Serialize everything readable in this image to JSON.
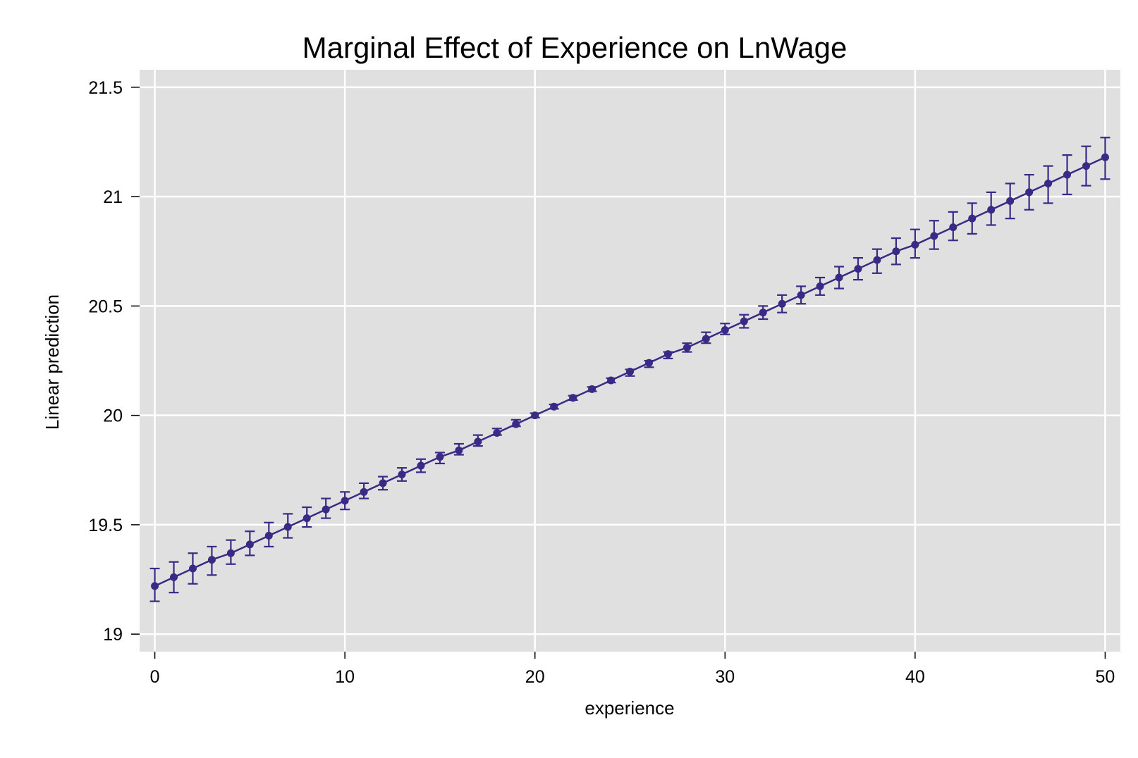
{
  "chart_data": {
    "type": "line",
    "title": "Marginal Effect of Experience on LnWage",
    "xlabel": "experience",
    "ylabel": "Linear prediction",
    "xlim": [
      -0.8,
      50.8
    ],
    "ylim": [
      18.92,
      21.58
    ],
    "x_ticks": [
      0,
      10,
      20,
      30,
      40,
      50
    ],
    "x_tick_labels": [
      "0",
      "10",
      "20",
      "30",
      "40",
      "50"
    ],
    "y_ticks": [
      19,
      19.5,
      20,
      20.5,
      21,
      21.5
    ],
    "y_tick_labels": [
      "19",
      "19.5",
      "20",
      "20.5",
      "21",
      "21.5"
    ],
    "grid": true,
    "legend": "none",
    "colors": {
      "series": "#3a2a86",
      "plot_background": "#e0e0e0",
      "grid": "#ffffff"
    },
    "series": [
      {
        "x": [
          0,
          1,
          2,
          3,
          4,
          5,
          6,
          7,
          8,
          9,
          10,
          11,
          12,
          13,
          14,
          15,
          16,
          17,
          18,
          19,
          20,
          21,
          22,
          23,
          24,
          25,
          26,
          27,
          28,
          29,
          30,
          31,
          32,
          33,
          34,
          35,
          36,
          37,
          38,
          39,
          40,
          41,
          42,
          43,
          44,
          45,
          46,
          47,
          48,
          49,
          50
        ],
        "y": [
          19.22,
          19.26,
          19.3,
          19.34,
          19.37,
          19.41,
          19.45,
          19.49,
          19.53,
          19.57,
          19.61,
          19.65,
          19.69,
          19.73,
          19.77,
          19.81,
          19.84,
          19.88,
          19.92,
          19.96,
          20.0,
          20.04,
          20.08,
          20.12,
          20.16,
          20.2,
          20.24,
          20.28,
          20.31,
          20.35,
          20.39,
          20.43,
          20.47,
          20.51,
          20.55,
          20.59,
          20.63,
          20.67,
          20.71,
          20.75,
          20.78,
          20.82,
          20.86,
          20.9,
          20.94,
          20.98,
          21.02,
          21.06,
          21.1,
          21.14,
          21.18
        ],
        "ci_lower": [
          19.15,
          19.19,
          19.23,
          19.27,
          19.32,
          19.36,
          19.4,
          19.44,
          19.49,
          19.53,
          19.57,
          19.62,
          19.66,
          19.7,
          19.74,
          19.78,
          19.82,
          19.86,
          19.91,
          19.95,
          19.99,
          20.03,
          20.07,
          20.11,
          20.15,
          20.18,
          20.22,
          20.26,
          20.29,
          20.33,
          20.37,
          20.4,
          20.44,
          20.47,
          20.51,
          20.55,
          20.58,
          20.62,
          20.65,
          20.69,
          20.72,
          20.76,
          20.8,
          20.83,
          20.87,
          20.9,
          20.94,
          20.97,
          21.01,
          21.05,
          21.08
        ],
        "ci_upper": [
          19.3,
          19.33,
          19.37,
          19.4,
          19.43,
          19.47,
          19.51,
          19.55,
          19.58,
          19.62,
          19.65,
          19.69,
          19.72,
          19.76,
          19.8,
          19.83,
          19.87,
          19.91,
          19.94,
          19.98,
          20.01,
          20.05,
          20.09,
          20.13,
          20.17,
          20.21,
          20.25,
          20.29,
          20.33,
          20.38,
          20.42,
          20.46,
          20.5,
          20.55,
          20.59,
          20.63,
          20.68,
          20.72,
          20.76,
          20.81,
          20.85,
          20.89,
          20.93,
          20.97,
          21.02,
          21.06,
          21.1,
          21.14,
          21.19,
          21.23,
          21.27
        ]
      }
    ]
  }
}
